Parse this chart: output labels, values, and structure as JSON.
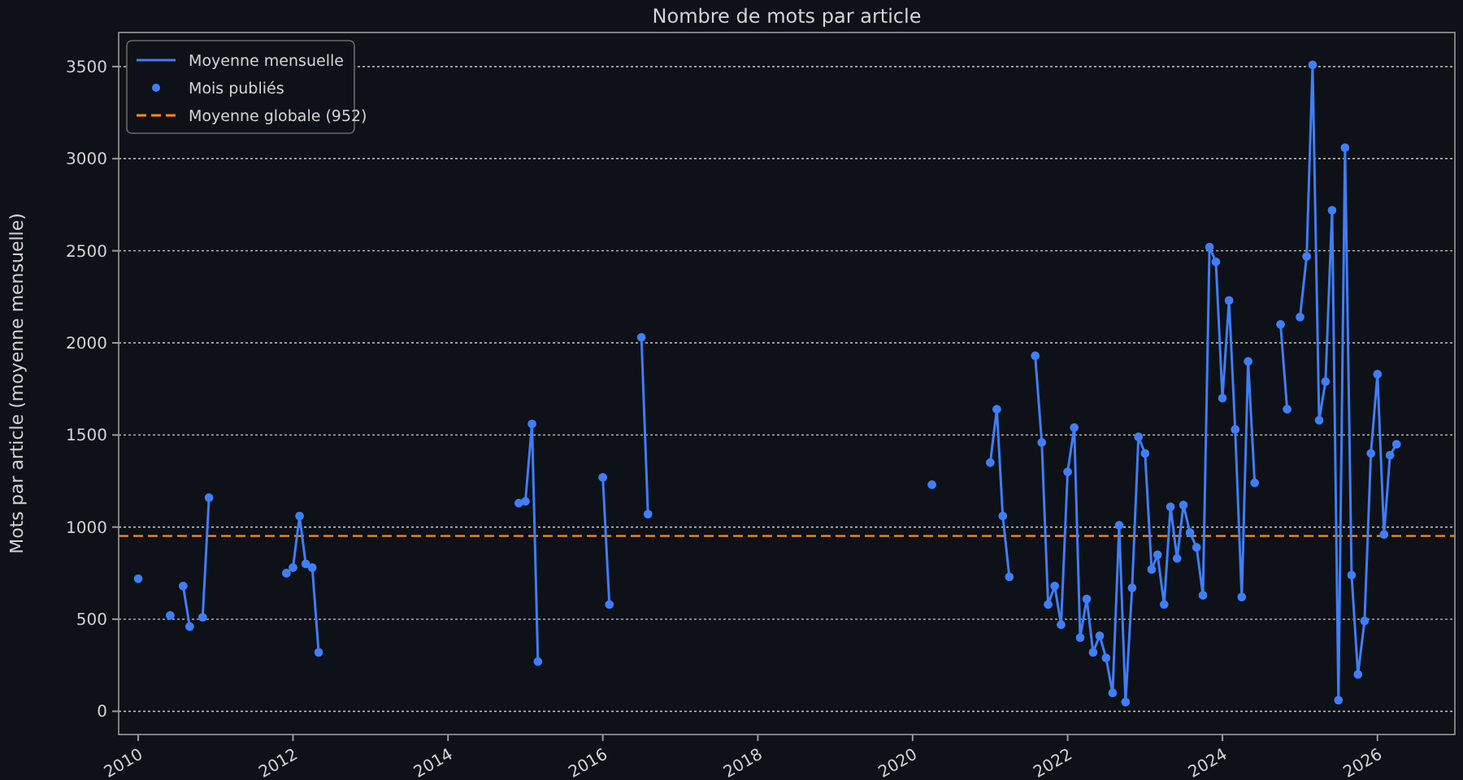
{
  "chart_data": {
    "type": "line",
    "title": "Nombre de mots par article",
    "ylabel": "Mots par article (moyenne mensuelle)",
    "xlim": [
      "2009-10",
      "2027-01"
    ],
    "xticks": [
      "2010",
      "2012",
      "2014",
      "2016",
      "2018",
      "2020",
      "2022",
      "2024",
      "2026"
    ],
    "ylim": [
      -126,
      3685
    ],
    "yticks": [
      0,
      500,
      1000,
      1500,
      2000,
      2500,
      3000,
      3500
    ],
    "grid": "y",
    "legend": "top left",
    "series": [
      {
        "name": "Moyenne mensuelle",
        "color": "#3f7ef7",
        "marker": "circle",
        "line_style": "solid",
        "x": [
          "2010-01",
          "2010-02",
          "2010-06",
          "2010-07",
          "2010-08",
          "2010-09",
          "2010-10",
          "2010-11",
          "2010-12",
          "2011-01",
          "2011-12",
          "2012-01",
          "2012-02",
          "2012-03",
          "2012-04",
          "2012-05",
          "2012-06",
          "2014-12",
          "2015-01",
          "2015-02",
          "2015-03",
          "2015-04",
          "2016-01",
          "2016-02",
          "2016-03",
          "2016-07",
          "2016-08",
          "2016-09",
          "2020-04",
          "2020-05",
          "2021-01",
          "2021-02",
          "2021-03",
          "2021-04",
          "2021-05",
          "2021-08",
          "2021-09",
          "2021-10",
          "2021-11",
          "2021-12",
          "2022-01",
          "2022-02",
          "2022-03",
          "2022-04",
          "2022-05",
          "2022-06",
          "2022-07",
          "2022-08",
          "2022-09",
          "2022-10",
          "2022-11",
          "2022-12",
          "2023-01",
          "2023-02",
          "2023-03",
          "2023-04",
          "2023-05",
          "2023-06",
          "2023-07",
          "2023-08",
          "2023-09",
          "2023-10",
          "2023-11",
          "2023-12",
          "2024-01",
          "2024-02",
          "2024-03",
          "2024-04",
          "2024-05",
          "2024-06",
          "2024-07",
          "2024-10",
          "2024-11",
          "2024-12",
          "2025-01",
          "2025-02",
          "2025-03",
          "2025-04",
          "2025-05",
          "2025-06",
          "2025-07",
          "2025-08",
          "2025-09",
          "2025-10",
          "2025-11",
          "2025-12",
          "2026-01",
          "2026-02",
          "2026-03",
          "2026-04"
        ],
        "values": [
          720,
          null,
          520,
          null,
          680,
          460,
          null,
          510,
          1160,
          null,
          750,
          780,
          1060,
          800,
          780,
          320,
          null,
          1130,
          1140,
          1560,
          270,
          null,
          1270,
          580,
          null,
          2030,
          1070,
          null,
          1230,
          null,
          1350,
          1640,
          1060,
          730,
          null,
          1930,
          1460,
          580,
          680,
          470,
          1300,
          1540,
          400,
          610,
          320,
          410,
          290,
          100,
          1010,
          50,
          670,
          1490,
          1400,
          770,
          850,
          580,
          1110,
          830,
          1120,
          970,
          890,
          630,
          2520,
          2440,
          1700,
          2230,
          1530,
          620,
          1900,
          1240,
          null,
          2100,
          1640,
          null,
          2140,
          2470,
          3510,
          1580,
          1790,
          2720,
          60,
          3060,
          740,
          200,
          490,
          1400,
          1830,
          960,
          1390,
          1450
        ]
      },
      {
        "name": "Mois publiés",
        "type": "scatter",
        "color": "#3f7ef7",
        "marker": "circle",
        "x": [
          "2010-01",
          "2010-06",
          "2010-08",
          "2010-09",
          "2010-11",
          "2010-12",
          "2011-12",
          "2012-01",
          "2012-02",
          "2012-03",
          "2012-04",
          "2012-05",
          "2014-12",
          "2015-01",
          "2015-02",
          "2015-03",
          "2016-01",
          "2016-02",
          "2016-07",
          "2016-08",
          "2020-04",
          "2021-01",
          "2021-02",
          "2021-03",
          "2021-04",
          "2021-08",
          "2021-09",
          "2021-10",
          "2021-11",
          "2021-12",
          "2022-01",
          "2022-02",
          "2022-03",
          "2022-04",
          "2022-05",
          "2022-06",
          "2022-07",
          "2022-08",
          "2022-09",
          "2022-10",
          "2022-11",
          "2022-12",
          "2023-01",
          "2023-02",
          "2023-03",
          "2023-04",
          "2023-05",
          "2023-06",
          "2023-07",
          "2023-08",
          "2023-09",
          "2023-10",
          "2023-11",
          "2023-12",
          "2024-01",
          "2024-02",
          "2024-03",
          "2024-04",
          "2024-05",
          "2024-06",
          "2024-10",
          "2024-11",
          "2025-01",
          "2025-02",
          "2025-03",
          "2025-04",
          "2025-05",
          "2025-06",
          "2025-07",
          "2025-08",
          "2025-09",
          "2025-10",
          "2025-11",
          "2025-12",
          "2026-01",
          "2026-02",
          "2026-03",
          "2026-04"
        ],
        "values": [
          720,
          520,
          680,
          460,
          510,
          1160,
          750,
          780,
          1060,
          800,
          780,
          320,
          1130,
          1140,
          1560,
          270,
          1270,
          580,
          2030,
          1070,
          1230,
          1350,
          1640,
          1060,
          730,
          1930,
          1460,
          580,
          680,
          470,
          1300,
          1540,
          400,
          610,
          320,
          410,
          290,
          100,
          1010,
          50,
          670,
          1490,
          1400,
          770,
          850,
          580,
          1110,
          830,
          1120,
          970,
          890,
          630,
          2520,
          2440,
          1700,
          2230,
          1530,
          620,
          1900,
          1240,
          2100,
          1640,
          2140,
          2470,
          3510,
          1580,
          1790,
          2720,
          60,
          3060,
          740,
          200,
          490,
          1400,
          1830,
          960,
          1390,
          1450
        ]
      }
    ],
    "ref_lines": [
      {
        "axis": "y",
        "value": 952,
        "label": "Moyenne globale (952)",
        "color": "#ff8c1a",
        "line_style": "dashed"
      }
    ]
  }
}
